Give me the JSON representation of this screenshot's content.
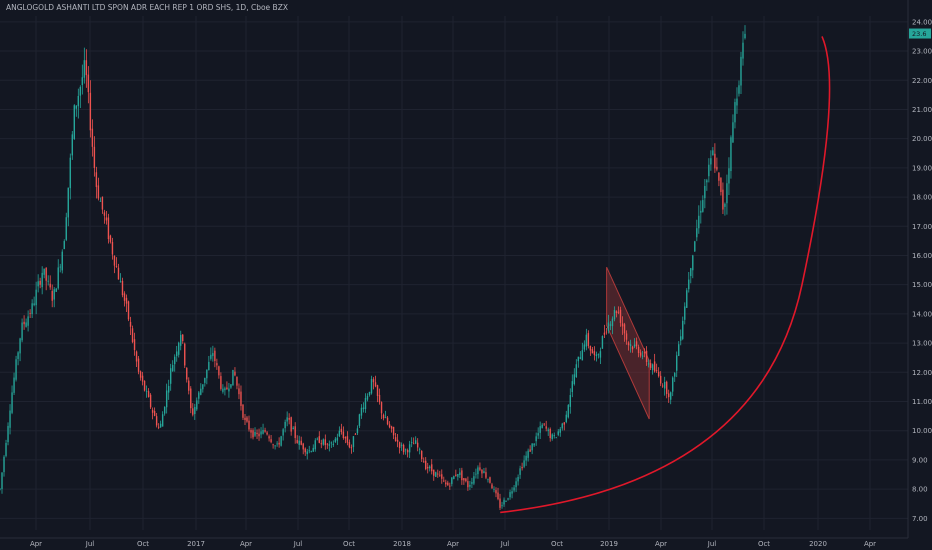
{
  "chart_data": {
    "type": "candlestick",
    "title": "ANGLOGOLD ASHANTI LTD SPON ADR EACH REP 1 ORD SHS, 1D, Cboe BZX",
    "last_price": "23.6",
    "ylim": [
      6.6,
      24.2
    ],
    "y_ticks": [
      "7.00",
      "8.00",
      "9.00",
      "10.00",
      "11.00",
      "12.00",
      "13.00",
      "14.00",
      "15.00",
      "16.00",
      "17.00",
      "18.00",
      "19.00",
      "20.00",
      "21.00",
      "22.00",
      "23.00",
      "24.00"
    ],
    "x_ticks": [
      "Apr",
      "Jul",
      "Oct",
      "2017",
      "Apr",
      "Jul",
      "Oct",
      "2018",
      "Apr",
      "Jul",
      "Oct",
      "2019",
      "Apr",
      "Jul",
      "Oct",
      "2020",
      "Apr"
    ],
    "price_path": [
      {
        "t": 0,
        "p": 8.0
      },
      {
        "t": 1,
        "p": 11.0
      },
      {
        "t": 2,
        "p": 13.5
      },
      {
        "t": 3,
        "p": 14.2
      },
      {
        "t": 4,
        "p": 15.5
      },
      {
        "t": 5,
        "p": 14.5
      },
      {
        "t": 6,
        "p": 16.5
      },
      {
        "t": 7,
        "p": 21.0
      },
      {
        "t": 8,
        "p": 22.5
      },
      {
        "t": 9,
        "p": 18.5
      },
      {
        "t": 10,
        "p": 17.0
      },
      {
        "t": 11,
        "p": 15.5
      },
      {
        "t": 12,
        "p": 14.0
      },
      {
        "t": 13,
        "p": 12.0
      },
      {
        "t": 14,
        "p": 11.0
      },
      {
        "t": 15,
        "p": 10.0
      },
      {
        "t": 16,
        "p": 12.0
      },
      {
        "t": 17,
        "p": 13.4
      },
      {
        "t": 18,
        "p": 10.5
      },
      {
        "t": 19,
        "p": 11.6
      },
      {
        "t": 20,
        "p": 12.7
      },
      {
        "t": 21,
        "p": 11.2
      },
      {
        "t": 22,
        "p": 12.0
      },
      {
        "t": 23,
        "p": 10.3
      },
      {
        "t": 24,
        "p": 9.8
      },
      {
        "t": 25,
        "p": 10.0
      },
      {
        "t": 26,
        "p": 9.4
      },
      {
        "t": 27,
        "p": 10.4
      },
      {
        "t": 28,
        "p": 9.6
      },
      {
        "t": 29,
        "p": 9.3
      },
      {
        "t": 30,
        "p": 9.7
      },
      {
        "t": 31,
        "p": 9.4
      },
      {
        "t": 32,
        "p": 10.0
      },
      {
        "t": 33,
        "p": 9.4
      },
      {
        "t": 34,
        "p": 10.8
      },
      {
        "t": 35,
        "p": 11.7
      },
      {
        "t": 36,
        "p": 10.5
      },
      {
        "t": 37,
        "p": 9.8
      },
      {
        "t": 38,
        "p": 9.3
      },
      {
        "t": 39,
        "p": 9.6
      },
      {
        "t": 40,
        "p": 8.8
      },
      {
        "t": 41,
        "p": 8.5
      },
      {
        "t": 42,
        "p": 8.1
      },
      {
        "t": 43,
        "p": 8.6
      },
      {
        "t": 44,
        "p": 8.1
      },
      {
        "t": 45,
        "p": 8.8
      },
      {
        "t": 46,
        "p": 8.3
      },
      {
        "t": 47,
        "p": 7.4
      },
      {
        "t": 48,
        "p": 7.9
      },
      {
        "t": 49,
        "p": 8.8
      },
      {
        "t": 50,
        "p": 9.5
      },
      {
        "t": 51,
        "p": 10.2
      },
      {
        "t": 52,
        "p": 9.7
      },
      {
        "t": 53,
        "p": 10.3
      },
      {
        "t": 54,
        "p": 12.0
      },
      {
        "t": 55,
        "p": 13.2
      },
      {
        "t": 56,
        "p": 12.4
      },
      {
        "t": 57,
        "p": 13.6
      },
      {
        "t": 58,
        "p": 14.2
      },
      {
        "t": 59,
        "p": 13.0
      },
      {
        "t": 60,
        "p": 12.8
      },
      {
        "t": 61,
        "p": 12.3
      },
      {
        "t": 62,
        "p": 11.8
      },
      {
        "t": 63,
        "p": 11.2
      },
      {
        "t": 64,
        "p": 13.5
      },
      {
        "t": 65,
        "p": 16.0
      },
      {
        "t": 66,
        "p": 18.0
      },
      {
        "t": 67,
        "p": 19.5
      },
      {
        "t": 68,
        "p": 17.5
      },
      {
        "t": 69,
        "p": 21.0
      },
      {
        "t": 70,
        "p": 23.6
      }
    ],
    "curve": {
      "color": "#e0182a",
      "start": {
        "t": 47,
        "p": 7.2
      },
      "end": {
        "t": 96,
        "p": 23.5
      }
    },
    "channel": {
      "color": "#b03a3a",
      "corners": [
        {
          "t": 57,
          "p": 15.6
        },
        {
          "t": 61,
          "p": 12.4
        },
        {
          "t": 61,
          "p": 10.4
        },
        {
          "t": 57,
          "p": 13.6
        }
      ]
    },
    "colors": {
      "background": "#131722",
      "up": "#26a69a",
      "down": "#ef5350",
      "price_tag": "#26a69a"
    }
  }
}
